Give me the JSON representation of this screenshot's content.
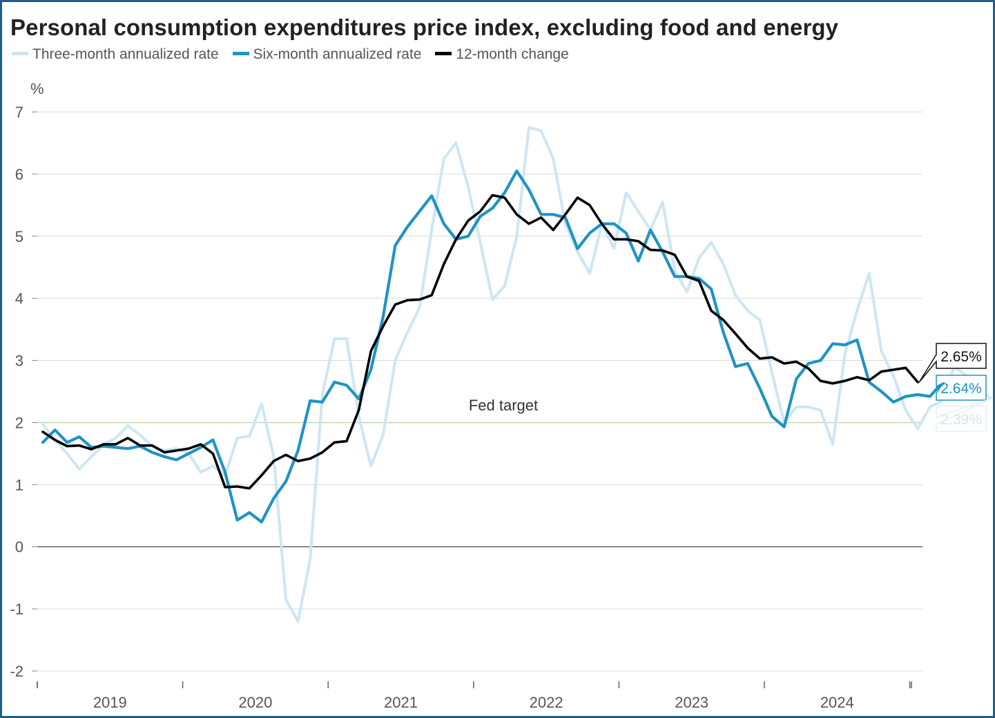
{
  "chart_data": {
    "type": "line",
    "title": "Personal consumption expenditures price index, excluding food and energy",
    "ylabel": "%",
    "ylim": [
      -2,
      7
    ],
    "y_ticks": [
      "7",
      "6",
      "5",
      "4",
      "3",
      "2",
      "1",
      "0",
      "-1",
      "-2"
    ],
    "x_start": "2019-01",
    "x_tick_labels": [
      "2019",
      "2020",
      "2021",
      "2022",
      "2023",
      "2024"
    ],
    "grid": true,
    "legend_position": "top-left",
    "reference_line": {
      "value": 2,
      "label": "Fed target",
      "color": "#b9dca6"
    },
    "zero_line_color": "#555555",
    "series": [
      {
        "name": "Three-month annualized rate",
        "color": "#cde6f4",
        "end_label": "2.39%",
        "values": [
          1.97,
          1.72,
          1.5,
          1.25,
          1.45,
          1.65,
          1.75,
          1.95,
          1.8,
          1.62,
          1.55,
          1.58,
          1.5,
          1.2,
          1.3,
          1.15,
          1.75,
          1.78,
          2.3,
          1.45,
          -0.85,
          -1.2,
          -0.2,
          2.45,
          3.35,
          3.35,
          2.1,
          1.3,
          1.8,
          3.0,
          3.45,
          3.85,
          5.1,
          6.25,
          6.5,
          5.8,
          4.9,
          3.98,
          4.2,
          5.0,
          6.75,
          6.7,
          6.25,
          5.2,
          4.75,
          4.4,
          5.2,
          4.8,
          5.7,
          5.4,
          5.1,
          5.55,
          4.45,
          4.1,
          4.65,
          4.9,
          4.55,
          4.05,
          3.8,
          3.65,
          2.8,
          2.0,
          2.25,
          2.25,
          2.2,
          1.65,
          3.1,
          3.8,
          4.4,
          3.15,
          2.75,
          2.2,
          1.9,
          2.25,
          2.35,
          2.9,
          2.75,
          2.55,
          2.39
        ]
      },
      {
        "name": "Six-month annualized rate",
        "color": "#1f93c4",
        "end_label": "2.64%",
        "values": [
          1.68,
          1.88,
          1.68,
          1.77,
          1.6,
          1.62,
          1.6,
          1.58,
          1.62,
          1.52,
          1.45,
          1.4,
          1.5,
          1.6,
          1.72,
          1.2,
          0.43,
          0.55,
          0.4,
          0.78,
          1.05,
          1.55,
          2.35,
          2.33,
          2.65,
          2.6,
          2.38,
          2.85,
          3.7,
          4.85,
          5.15,
          5.4,
          5.65,
          5.2,
          4.95,
          5.0,
          5.32,
          5.45,
          5.7,
          6.05,
          5.75,
          5.35,
          5.35,
          5.3,
          4.8,
          5.05,
          5.2,
          5.2,
          5.05,
          4.6,
          5.1,
          4.75,
          4.35,
          4.35,
          4.32,
          4.15,
          3.45,
          2.9,
          2.95,
          2.55,
          2.1,
          1.93,
          2.7,
          2.95,
          3.0,
          3.27,
          3.25,
          3.33,
          2.65,
          2.5,
          2.33,
          2.42,
          2.45,
          2.42,
          2.64
        ]
      },
      {
        "name": "12-month change",
        "color": "#000000",
        "end_label": "2.65%",
        "values": [
          1.85,
          1.72,
          1.62,
          1.63,
          1.57,
          1.65,
          1.65,
          1.75,
          1.63,
          1.63,
          1.52,
          1.55,
          1.58,
          1.65,
          1.5,
          0.96,
          0.97,
          0.94,
          1.15,
          1.38,
          1.48,
          1.38,
          1.42,
          1.52,
          1.68,
          1.7,
          2.2,
          3.15,
          3.55,
          3.9,
          3.97,
          3.98,
          4.05,
          4.55,
          4.95,
          5.25,
          5.4,
          5.66,
          5.62,
          5.35,
          5.2,
          5.3,
          5.1,
          5.35,
          5.62,
          5.5,
          5.2,
          4.95,
          4.95,
          4.92,
          4.78,
          4.77,
          4.7,
          4.35,
          4.28,
          3.8,
          3.65,
          3.43,
          3.2,
          3.03,
          3.05,
          2.95,
          2.98,
          2.87,
          2.67,
          2.63,
          2.67,
          2.73,
          2.68,
          2.82,
          2.85,
          2.88,
          2.65
        ]
      }
    ]
  }
}
